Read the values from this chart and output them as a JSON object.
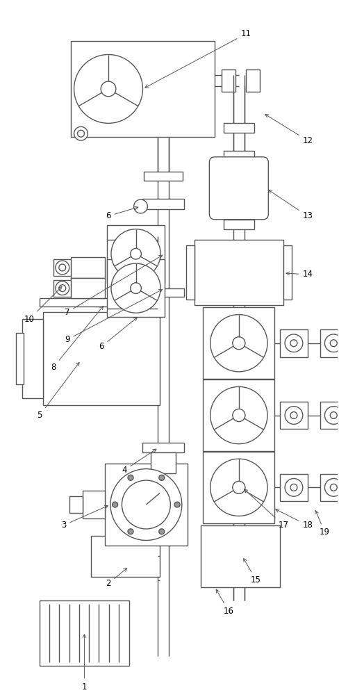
{
  "bg_color": "#ffffff",
  "line_color": "#555555",
  "line_width": 1.0,
  "figsize": [
    4.89,
    10.0
  ],
  "dpi": 100
}
